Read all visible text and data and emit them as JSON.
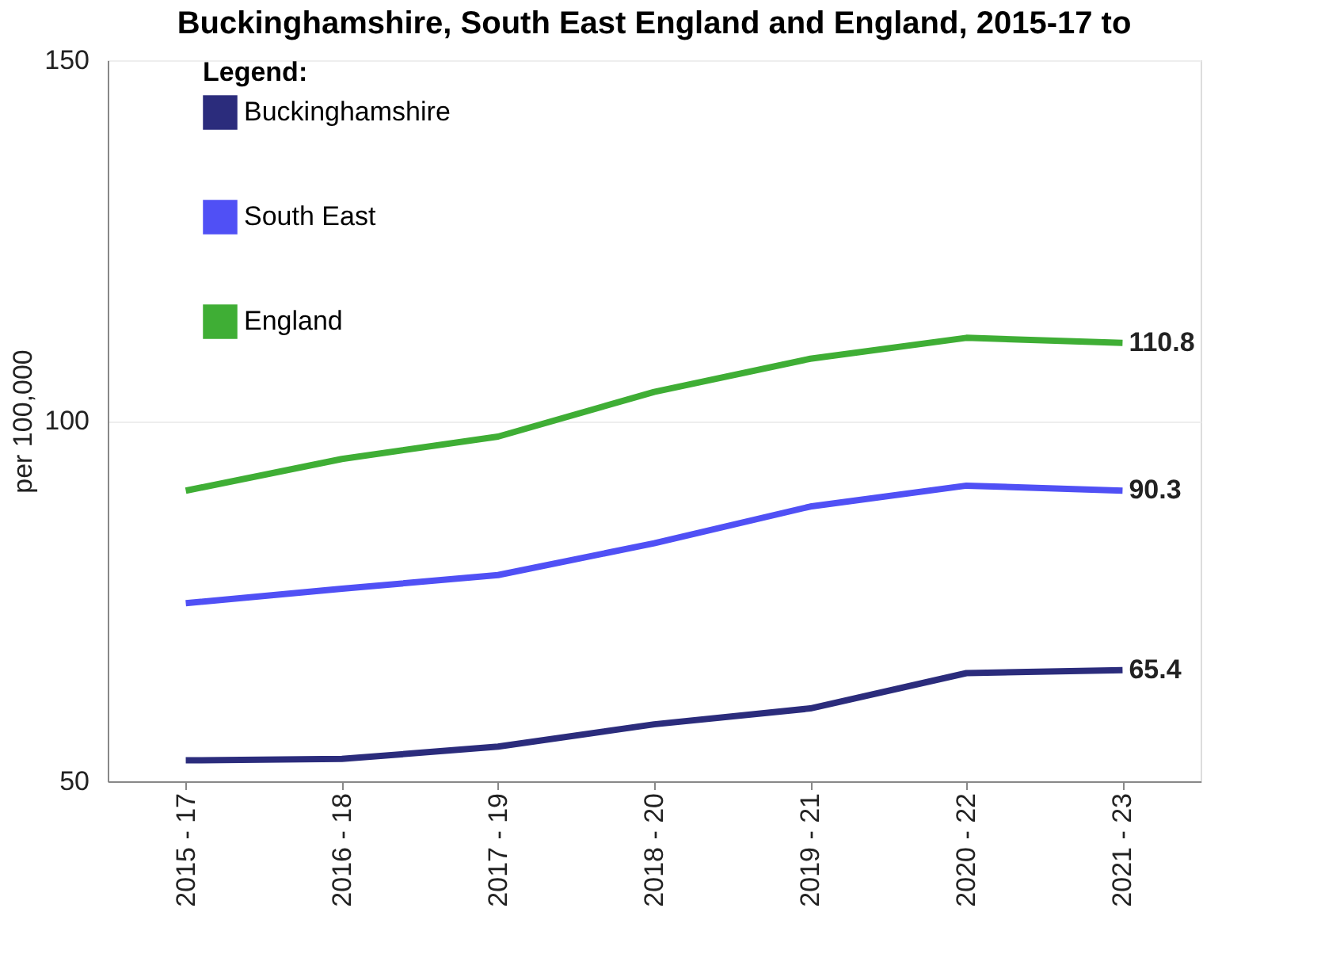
{
  "chart_data": {
    "type": "line",
    "title": "Buckinghamshire, South East England and England, 2015-17 to",
    "ylabel": "per 100,000",
    "legend_title": "Legend:",
    "categories": [
      "2015 - 17",
      "2016 - 18",
      "2017 - 19",
      "2018 - 20",
      "2019 - 21",
      "2020 - 22",
      "2021 - 23"
    ],
    "series": [
      {
        "name": "Buckinghamshire",
        "color": "#2b2c7c",
        "values": [
          52.9,
          53.1,
          54.8,
          57.9,
          60.1,
          65.0,
          65.4
        ],
        "value_labels": [
          null,
          null,
          null,
          null,
          null,
          null,
          "65.4"
        ]
      },
      {
        "name": "South East",
        "color": "#5050f5",
        "values": [
          74.7,
          76.7,
          78.6,
          83.0,
          88.1,
          91.0,
          90.3
        ],
        "value_labels": [
          null,
          null,
          null,
          null,
          null,
          null,
          "90.3"
        ]
      },
      {
        "name": "England",
        "color": "#3fae35",
        "values": [
          90.3,
          94.7,
          97.8,
          104.0,
          108.6,
          111.5,
          110.8
        ],
        "value_labels": [
          null,
          null,
          null,
          null,
          null,
          null,
          "110.8"
        ]
      }
    ],
    "ylim": [
      50,
      150
    ],
    "yticks": [
      50,
      100,
      150
    ],
    "grid": "y",
    "legend": "top left",
    "marker": "none",
    "line_style": "solid"
  }
}
